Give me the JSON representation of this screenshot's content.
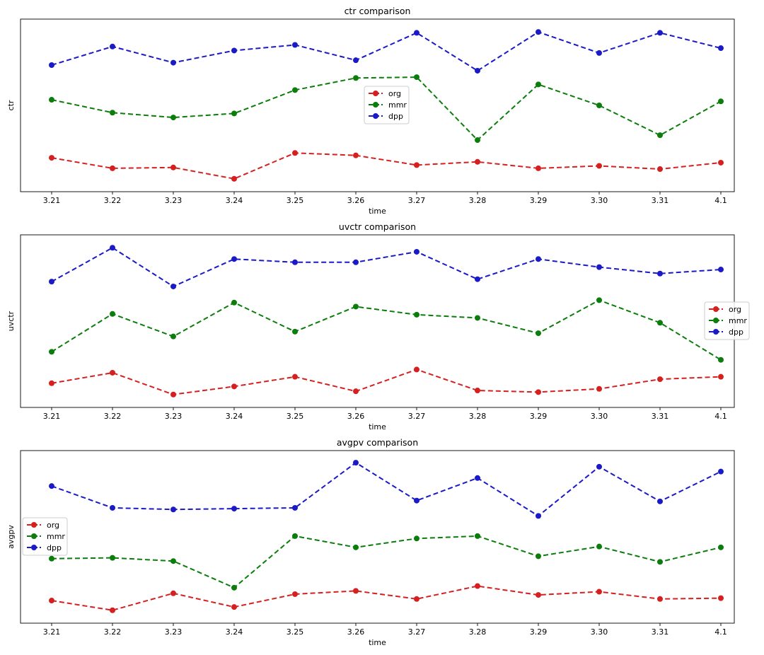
{
  "chart_data": [
    {
      "type": "line",
      "title": "ctr comparison",
      "xlabel": "time",
      "ylabel": "ctr",
      "categories": [
        "3.21",
        "3.22",
        "3.23",
        "3.24",
        "3.25",
        "3.26",
        "3.27",
        "3.28",
        "3.29",
        "3.30",
        "3.31",
        "4.1"
      ],
      "ylim": [
        0,
        100
      ],
      "y_ticks_visible": false,
      "legend": "center",
      "series": [
        {
          "name": "org",
          "color": "#d62020",
          "values": [
            17.5,
            11,
            11.5,
            4.5,
            20.5,
            19,
            13,
            15,
            11,
            12.5,
            10.5,
            14.5
          ]
        },
        {
          "name": "mmr",
          "color": "#0a7d0a",
          "values": [
            53.5,
            45.5,
            42.5,
            45,
            59.5,
            67,
            67.5,
            28.5,
            63,
            50,
            31.5,
            52.5
          ]
        },
        {
          "name": "dpp",
          "color": "#1a1ac8",
          "values": [
            75,
            86.5,
            76.5,
            84,
            87.5,
            78,
            95,
            71.5,
            95.5,
            82.5,
            95,
            85.5
          ]
        }
      ]
    },
    {
      "type": "line",
      "title": "uvctr comparison",
      "xlabel": "time",
      "ylabel": "uvctr",
      "categories": [
        "3.21",
        "3.22",
        "3.23",
        "3.24",
        "3.25",
        "3.26",
        "3.27",
        "3.28",
        "3.29",
        "3.30",
        "3.31",
        "4.1"
      ],
      "ylim": [
        0,
        100
      ],
      "y_ticks_visible": false,
      "legend": "center-right",
      "series": [
        {
          "name": "org",
          "color": "#d62020",
          "values": [
            11.5,
            18,
            4.5,
            9.5,
            15.5,
            6.5,
            20,
            7,
            6,
            8,
            14,
            15.5
          ]
        },
        {
          "name": "mmr",
          "color": "#0a7d0a",
          "values": [
            31,
            54.5,
            40.5,
            61.5,
            43.5,
            59,
            54,
            52,
            42.5,
            63,
            49,
            26
          ]
        },
        {
          "name": "dpp",
          "color": "#1a1ac8",
          "values": [
            74.5,
            95.5,
            71.5,
            88.5,
            86.5,
            86.5,
            93,
            76,
            88.5,
            83.5,
            79.5,
            82
          ]
        }
      ]
    },
    {
      "type": "line",
      "title": "avgpv comparison",
      "xlabel": "time",
      "ylabel": "avgpv",
      "categories": [
        "3.21",
        "3.22",
        "3.23",
        "3.24",
        "3.25",
        "3.26",
        "3.27",
        "3.28",
        "3.29",
        "3.30",
        "3.31",
        "4.1"
      ],
      "ylim": [
        0,
        100
      ],
      "y_ticks_visible": false,
      "legend": "center-left",
      "series": [
        {
          "name": "org",
          "color": "#d62020",
          "values": [
            10.5,
            4.5,
            15,
            6.5,
            14.5,
            16.5,
            11.5,
            19.5,
            14,
            16,
            11.5,
            12
          ]
        },
        {
          "name": "mmr",
          "color": "#0a7d0a",
          "values": [
            36.5,
            37,
            35,
            18.5,
            50.5,
            43.5,
            49,
            50.5,
            38,
            44,
            34.5,
            43.5
          ]
        },
        {
          "name": "dpp",
          "color": "#1a1ac8",
          "values": [
            81.5,
            68,
            67,
            67.5,
            68,
            96,
            72.5,
            86.5,
            63,
            93.5,
            72,
            90.5
          ]
        }
      ]
    }
  ]
}
